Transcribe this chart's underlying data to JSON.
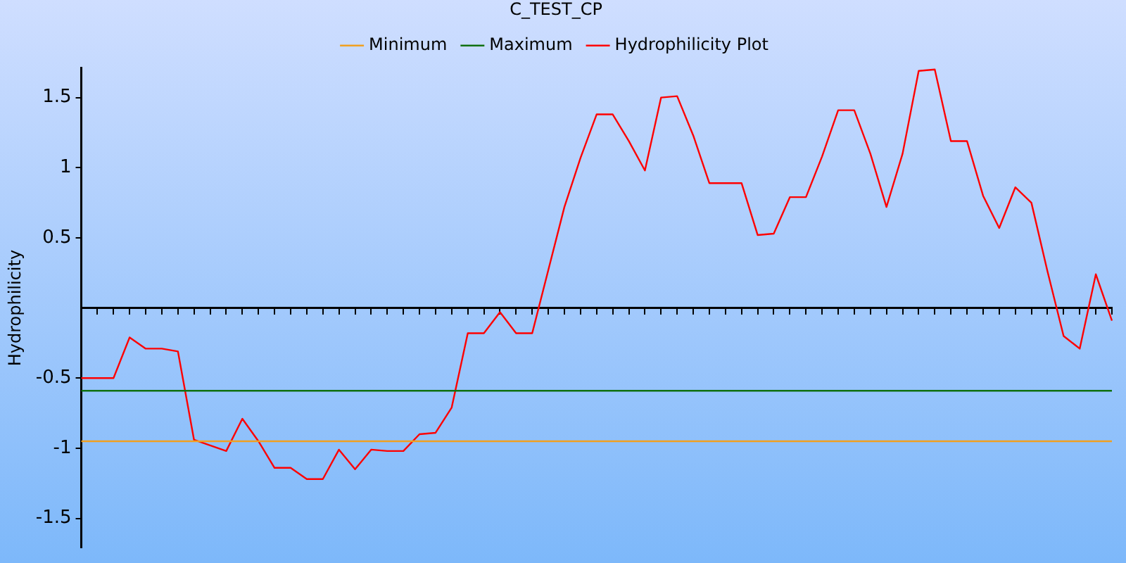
{
  "chart_data": {
    "type": "line",
    "title": "C_TEST_CP",
    "ylabel": "Hydrophilicity",
    "categories": [
      null,
      null,
      null,
      null,
      null,
      null,
      null,
      null,
      null,
      null,
      null,
      null,
      null,
      null,
      null,
      null,
      null,
      null,
      null,
      null,
      null,
      null,
      null,
      null,
      null,
      null,
      null,
      null,
      null,
      null,
      null,
      null,
      null,
      null,
      null,
      null,
      null,
      null,
      null,
      null,
      null,
      null,
      null,
      null,
      null,
      null,
      null,
      null,
      null,
      null,
      null,
      null,
      null,
      null,
      null,
      null,
      null,
      null,
      null,
      null,
      null,
      null,
      null,
      null,
      null
    ],
    "series": [
      {
        "name": "Minimum",
        "color": "#f0a020",
        "values": [
          -0.95,
          -0.95,
          -0.95,
          -0.95,
          -0.95,
          -0.95,
          -0.95,
          -0.95,
          -0.95,
          -0.95,
          -0.95,
          -0.95,
          -0.95,
          -0.95,
          -0.95,
          -0.95,
          -0.95,
          -0.95,
          -0.95,
          -0.95,
          -0.95,
          -0.95,
          -0.95,
          -0.95,
          -0.95,
          -0.95,
          -0.95,
          -0.95,
          -0.95,
          -0.95,
          -0.95,
          -0.95,
          -0.95,
          -0.95,
          -0.95,
          -0.95,
          -0.95,
          -0.95,
          -0.95,
          -0.95,
          -0.95,
          -0.95,
          -0.95,
          -0.95,
          -0.95,
          -0.95,
          -0.95,
          -0.95,
          -0.95,
          -0.95,
          -0.95,
          -0.95,
          -0.95,
          -0.95,
          -0.95,
          -0.95,
          -0.95,
          -0.95,
          -0.95,
          -0.95,
          -0.95,
          -0.95,
          -0.95,
          -0.95,
          -0.95
        ]
      },
      {
        "name": "Maximum",
        "color": "#107010",
        "values": [
          -0.59,
          -0.59,
          -0.59,
          -0.59,
          -0.59,
          -0.59,
          -0.59,
          -0.59,
          -0.59,
          -0.59,
          -0.59,
          -0.59,
          -0.59,
          -0.59,
          -0.59,
          -0.59,
          -0.59,
          -0.59,
          -0.59,
          -0.59,
          -0.59,
          -0.59,
          -0.59,
          -0.59,
          -0.59,
          -0.59,
          -0.59,
          -0.59,
          -0.59,
          -0.59,
          -0.59,
          -0.59,
          -0.59,
          -0.59,
          -0.59,
          -0.59,
          -0.59,
          -0.59,
          -0.59,
          -0.59,
          -0.59,
          -0.59,
          -0.59,
          -0.59,
          -0.59,
          -0.59,
          -0.59,
          -0.59,
          -0.59,
          -0.59,
          -0.59,
          -0.59,
          -0.59,
          -0.59,
          -0.59,
          -0.59,
          -0.59,
          -0.59,
          -0.59,
          -0.59,
          -0.59,
          -0.59,
          -0.59,
          -0.59,
          -0.59
        ]
      },
      {
        "name": "Hydrophilicity Plot",
        "color": "#ff0000",
        "values": [
          -0.5,
          -0.5,
          -0.5,
          -0.21,
          -0.29,
          -0.29,
          -0.31,
          -0.94,
          -0.98,
          -1.02,
          -0.79,
          -0.95,
          -1.14,
          -1.14,
          -1.22,
          -1.22,
          -1.01,
          -1.15,
          -1.01,
          -1.02,
          -1.02,
          -0.9,
          -0.89,
          -0.71,
          -0.18,
          -0.18,
          -0.03,
          -0.18,
          -0.18,
          0.27,
          0.72,
          1.07,
          1.38,
          1.38,
          1.19,
          0.98,
          1.5,
          1.51,
          1.23,
          0.89,
          0.89,
          0.89,
          0.52,
          0.53,
          0.79,
          0.79,
          1.08,
          1.41,
          1.41,
          1.1,
          0.72,
          1.1,
          1.69,
          1.7,
          1.19,
          1.19,
          0.8,
          0.57,
          0.86,
          0.75,
          0.26,
          -0.2,
          -0.29,
          0.24,
          -0.09
        ]
      }
    ],
    "ylim": [
      -1.71,
      1.71
    ],
    "yticks": [
      -1.5,
      -1,
      -0.5,
      0.5,
      1,
      1.5
    ],
    "tick_labels": "y",
    "grid": false,
    "legend": "top",
    "marker": "none",
    "line_style": "solid"
  }
}
